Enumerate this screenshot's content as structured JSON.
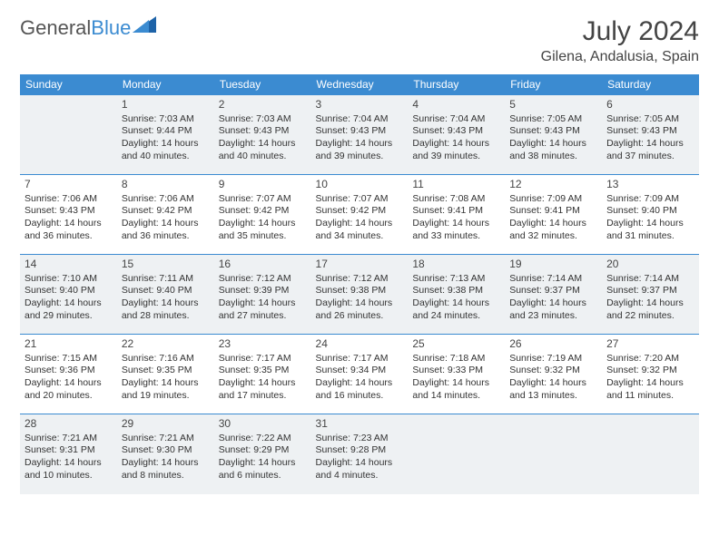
{
  "logo": {
    "text1": "General",
    "text2": "Blue"
  },
  "header": {
    "month_title": "July 2024",
    "location": "Gilena, Andalusia, Spain"
  },
  "colors": {
    "header_bg": "#3b8bd1",
    "header_text": "#ffffff",
    "border": "#3b8bd1",
    "shaded": "#eef1f3",
    "text": "#333333"
  },
  "day_headers": [
    "Sunday",
    "Monday",
    "Tuesday",
    "Wednesday",
    "Thursday",
    "Friday",
    "Saturday"
  ],
  "weeks": [
    [
      {
        "num": "",
        "sunrise": "",
        "sunset": "",
        "daylight": ""
      },
      {
        "num": "1",
        "sunrise": "Sunrise: 7:03 AM",
        "sunset": "Sunset: 9:44 PM",
        "daylight": "Daylight: 14 hours and 40 minutes."
      },
      {
        "num": "2",
        "sunrise": "Sunrise: 7:03 AM",
        "sunset": "Sunset: 9:43 PM",
        "daylight": "Daylight: 14 hours and 40 minutes."
      },
      {
        "num": "3",
        "sunrise": "Sunrise: 7:04 AM",
        "sunset": "Sunset: 9:43 PM",
        "daylight": "Daylight: 14 hours and 39 minutes."
      },
      {
        "num": "4",
        "sunrise": "Sunrise: 7:04 AM",
        "sunset": "Sunset: 9:43 PM",
        "daylight": "Daylight: 14 hours and 39 minutes."
      },
      {
        "num": "5",
        "sunrise": "Sunrise: 7:05 AM",
        "sunset": "Sunset: 9:43 PM",
        "daylight": "Daylight: 14 hours and 38 minutes."
      },
      {
        "num": "6",
        "sunrise": "Sunrise: 7:05 AM",
        "sunset": "Sunset: 9:43 PM",
        "daylight": "Daylight: 14 hours and 37 minutes."
      }
    ],
    [
      {
        "num": "7",
        "sunrise": "Sunrise: 7:06 AM",
        "sunset": "Sunset: 9:43 PM",
        "daylight": "Daylight: 14 hours and 36 minutes."
      },
      {
        "num": "8",
        "sunrise": "Sunrise: 7:06 AM",
        "sunset": "Sunset: 9:42 PM",
        "daylight": "Daylight: 14 hours and 36 minutes."
      },
      {
        "num": "9",
        "sunrise": "Sunrise: 7:07 AM",
        "sunset": "Sunset: 9:42 PM",
        "daylight": "Daylight: 14 hours and 35 minutes."
      },
      {
        "num": "10",
        "sunrise": "Sunrise: 7:07 AM",
        "sunset": "Sunset: 9:42 PM",
        "daylight": "Daylight: 14 hours and 34 minutes."
      },
      {
        "num": "11",
        "sunrise": "Sunrise: 7:08 AM",
        "sunset": "Sunset: 9:41 PM",
        "daylight": "Daylight: 14 hours and 33 minutes."
      },
      {
        "num": "12",
        "sunrise": "Sunrise: 7:09 AM",
        "sunset": "Sunset: 9:41 PM",
        "daylight": "Daylight: 14 hours and 32 minutes."
      },
      {
        "num": "13",
        "sunrise": "Sunrise: 7:09 AM",
        "sunset": "Sunset: 9:40 PM",
        "daylight": "Daylight: 14 hours and 31 minutes."
      }
    ],
    [
      {
        "num": "14",
        "sunrise": "Sunrise: 7:10 AM",
        "sunset": "Sunset: 9:40 PM",
        "daylight": "Daylight: 14 hours and 29 minutes."
      },
      {
        "num": "15",
        "sunrise": "Sunrise: 7:11 AM",
        "sunset": "Sunset: 9:40 PM",
        "daylight": "Daylight: 14 hours and 28 minutes."
      },
      {
        "num": "16",
        "sunrise": "Sunrise: 7:12 AM",
        "sunset": "Sunset: 9:39 PM",
        "daylight": "Daylight: 14 hours and 27 minutes."
      },
      {
        "num": "17",
        "sunrise": "Sunrise: 7:12 AM",
        "sunset": "Sunset: 9:38 PM",
        "daylight": "Daylight: 14 hours and 26 minutes."
      },
      {
        "num": "18",
        "sunrise": "Sunrise: 7:13 AM",
        "sunset": "Sunset: 9:38 PM",
        "daylight": "Daylight: 14 hours and 24 minutes."
      },
      {
        "num": "19",
        "sunrise": "Sunrise: 7:14 AM",
        "sunset": "Sunset: 9:37 PM",
        "daylight": "Daylight: 14 hours and 23 minutes."
      },
      {
        "num": "20",
        "sunrise": "Sunrise: 7:14 AM",
        "sunset": "Sunset: 9:37 PM",
        "daylight": "Daylight: 14 hours and 22 minutes."
      }
    ],
    [
      {
        "num": "21",
        "sunrise": "Sunrise: 7:15 AM",
        "sunset": "Sunset: 9:36 PM",
        "daylight": "Daylight: 14 hours and 20 minutes."
      },
      {
        "num": "22",
        "sunrise": "Sunrise: 7:16 AM",
        "sunset": "Sunset: 9:35 PM",
        "daylight": "Daylight: 14 hours and 19 minutes."
      },
      {
        "num": "23",
        "sunrise": "Sunrise: 7:17 AM",
        "sunset": "Sunset: 9:35 PM",
        "daylight": "Daylight: 14 hours and 17 minutes."
      },
      {
        "num": "24",
        "sunrise": "Sunrise: 7:17 AM",
        "sunset": "Sunset: 9:34 PM",
        "daylight": "Daylight: 14 hours and 16 minutes."
      },
      {
        "num": "25",
        "sunrise": "Sunrise: 7:18 AM",
        "sunset": "Sunset: 9:33 PM",
        "daylight": "Daylight: 14 hours and 14 minutes."
      },
      {
        "num": "26",
        "sunrise": "Sunrise: 7:19 AM",
        "sunset": "Sunset: 9:32 PM",
        "daylight": "Daylight: 14 hours and 13 minutes."
      },
      {
        "num": "27",
        "sunrise": "Sunrise: 7:20 AM",
        "sunset": "Sunset: 9:32 PM",
        "daylight": "Daylight: 14 hours and 11 minutes."
      }
    ],
    [
      {
        "num": "28",
        "sunrise": "Sunrise: 7:21 AM",
        "sunset": "Sunset: 9:31 PM",
        "daylight": "Daylight: 14 hours and 10 minutes."
      },
      {
        "num": "29",
        "sunrise": "Sunrise: 7:21 AM",
        "sunset": "Sunset: 9:30 PM",
        "daylight": "Daylight: 14 hours and 8 minutes."
      },
      {
        "num": "30",
        "sunrise": "Sunrise: 7:22 AM",
        "sunset": "Sunset: 9:29 PM",
        "daylight": "Daylight: 14 hours and 6 minutes."
      },
      {
        "num": "31",
        "sunrise": "Sunrise: 7:23 AM",
        "sunset": "Sunset: 9:28 PM",
        "daylight": "Daylight: 14 hours and 4 minutes."
      },
      {
        "num": "",
        "sunrise": "",
        "sunset": "",
        "daylight": ""
      },
      {
        "num": "",
        "sunrise": "",
        "sunset": "",
        "daylight": ""
      },
      {
        "num": "",
        "sunrise": "",
        "sunset": "",
        "daylight": ""
      }
    ]
  ]
}
